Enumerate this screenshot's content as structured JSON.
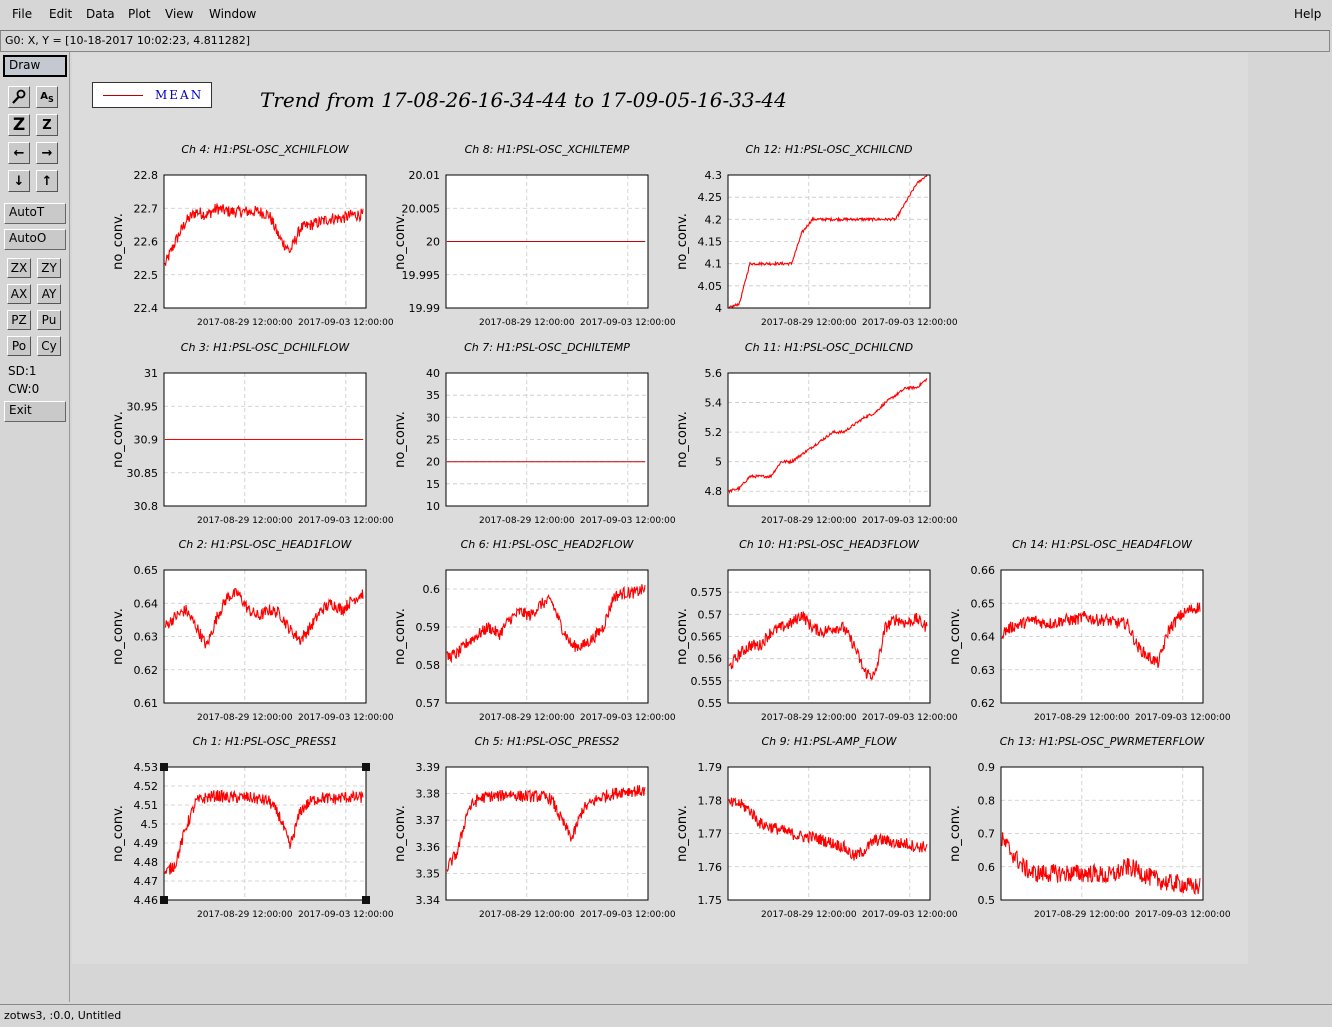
{
  "menu": {
    "items": [
      "File",
      "Edit",
      "Data",
      "Plot",
      "View",
      "Window"
    ],
    "help": "Help"
  },
  "coord_readout": "G0: X, Y = [10-18-2017 10:02:23, 4.811282]",
  "toolbar": {
    "draw": "Draw",
    "autot": "AutoT",
    "autoo": "AutoO",
    "small": [
      "ZX",
      "ZY",
      "AX",
      "AY",
      "PZ",
      "Pu",
      "Po",
      "Cy"
    ],
    "sd": "SD:1",
    "cw": "CW:0",
    "exit": "Exit"
  },
  "legend": {
    "label": "MEAN",
    "color": "#cc0000"
  },
  "main_title": "Trend from 17-08-26-16-34-44 to 17-09-05-16-33-44",
  "status": "zotws3, :0.0, Untitled",
  "chart_data": [
    {
      "type": "line",
      "title": "Ch 4: H1:PSL-OSC_XCHILFLOW",
      "ylabel": "no_conv.",
      "ylim": [
        22.4,
        22.8
      ],
      "yticks": [
        "22.8",
        "22.7",
        "22.6",
        "22.5",
        "22.4"
      ],
      "xticks": [
        "2017-08-29 12:00:00",
        "2017-09-03 12:00:00"
      ],
      "series": [
        {
          "color": "#ff0000",
          "values": [
            22.53,
            22.6,
            22.66,
            22.69,
            22.68,
            22.7,
            22.69,
            22.69,
            22.69,
            22.69,
            22.68,
            22.61,
            22.57,
            22.64,
            22.65,
            22.66,
            22.67,
            22.67,
            22.68,
            22.68
          ]
        }
      ]
    },
    {
      "type": "line",
      "title": "Ch 8: H1:PSL-OSC_XCHILTEMP",
      "ylabel": "no_conv.",
      "ylim": [
        19.99,
        20.01
      ],
      "yticks": [
        "20.01",
        "20.005",
        "20",
        "19.995",
        "19.99"
      ],
      "xticks": [
        "2017-08-29 12:00:00",
        "2017-09-03 12:00:00"
      ],
      "series": [
        {
          "color": "#cc0000",
          "values": [
            20,
            20,
            20,
            20,
            20,
            20,
            20,
            20,
            20,
            20,
            20,
            20,
            20,
            20,
            20,
            20,
            20,
            20,
            20,
            20
          ]
        }
      ]
    },
    {
      "type": "line",
      "title": "Ch 12: H1:PSL-OSC_XCHILCND",
      "ylabel": "no_conv.",
      "ylim": [
        4,
        4.3
      ],
      "yticks": [
        "4.3",
        "4.25",
        "4.2",
        "4.15",
        "4.1",
        "4.05",
        "4"
      ],
      "xticks": [
        "2017-08-29 12:00:00",
        "2017-09-03 12:00:00"
      ],
      "series": [
        {
          "color": "#ff0000",
          "values": [
            4,
            4.01,
            4.1,
            4.1,
            4.1,
            4.1,
            4.1,
            4.17,
            4.2,
            4.2,
            4.2,
            4.2,
            4.2,
            4.2,
            4.2,
            4.2,
            4.2,
            4.24,
            4.28,
            4.3
          ]
        }
      ]
    },
    {
      "type": "line",
      "title": "Ch 3: H1:PSL-OSC_DCHILFLOW",
      "ylabel": "no_conv.",
      "ylim": [
        30.8,
        31
      ],
      "yticks": [
        "31",
        "30.95",
        "30.9",
        "30.85",
        "30.8"
      ],
      "xticks": [
        "2017-08-29 12:00:00",
        "2017-09-03 12:00:00"
      ],
      "series": [
        {
          "color": "#ff0000",
          "values": [
            30.9,
            30.9,
            30.9,
            30.9,
            30.9,
            30.9,
            30.9,
            30.9,
            30.9,
            30.9,
            30.9,
            30.9,
            30.9,
            30.9,
            30.9,
            30.9,
            30.9,
            30.9,
            30.9,
            30.9
          ]
        }
      ]
    },
    {
      "type": "line",
      "title": "Ch 7: H1:PSL-OSC_DCHILTEMP",
      "ylabel": "no_conv.",
      "ylim": [
        10,
        40
      ],
      "yticks": [
        "40",
        "35",
        "30",
        "25",
        "20",
        "15",
        "10"
      ],
      "xticks": [
        "2017-08-29 12:00:00",
        "2017-09-03 12:00:00"
      ],
      "series": [
        {
          "color": "#cc0000",
          "values": [
            20,
            20,
            20,
            20,
            20,
            20,
            20,
            20,
            20,
            20,
            20,
            20,
            20,
            20,
            20,
            20,
            20,
            20,
            20,
            20
          ]
        }
      ]
    },
    {
      "type": "line",
      "title": "Ch 11: H1:PSL-OSC_DCHILCND",
      "ylabel": "no_conv.",
      "ylim": [
        4.7,
        5.6
      ],
      "yticks": [
        "5.6",
        "5.4",
        "5.2",
        "5",
        "4.8"
      ],
      "xticks": [
        "2017-08-29 12:00:00",
        "2017-09-03 12:00:00"
      ],
      "series": [
        {
          "color": "#ff0000",
          "values": [
            4.8,
            4.82,
            4.9,
            4.9,
            4.9,
            5,
            5,
            5.05,
            5.1,
            5.15,
            5.2,
            5.2,
            5.25,
            5.3,
            5.33,
            5.4,
            5.45,
            5.5,
            5.5,
            5.56
          ]
        }
      ]
    },
    {
      "type": "line",
      "title": "Ch 2: H1:PSL-OSC_HEAD1FLOW",
      "ylabel": "no_conv.",
      "ylim": [
        0.61,
        0.65
      ],
      "yticks": [
        "0.65",
        "0.64",
        "0.63",
        "0.62",
        "0.61"
      ],
      "xticks": [
        "2017-08-29 12:00:00",
        "2017-09-03 12:00:00"
      ],
      "series": [
        {
          "color": "#ff0000",
          "values": [
            0.633,
            0.636,
            0.638,
            0.633,
            0.627,
            0.636,
            0.642,
            0.643,
            0.638,
            0.636,
            0.638,
            0.637,
            0.632,
            0.629,
            0.633,
            0.638,
            0.64,
            0.638,
            0.641,
            0.643
          ]
        }
      ]
    },
    {
      "type": "line",
      "title": "Ch 6: H1:PSL-OSC_HEAD2FLOW",
      "ylabel": "no_conv.",
      "ylim": [
        0.57,
        0.605
      ],
      "yticks": [
        "0.6",
        "0.59",
        "0.58",
        "0.57"
      ],
      "xticks": [
        "2017-08-29 12:00:00",
        "2017-09-03 12:00:00"
      ],
      "series": [
        {
          "color": "#ff0000",
          "values": [
            0.582,
            0.583,
            0.586,
            0.588,
            0.59,
            0.588,
            0.592,
            0.594,
            0.593,
            0.596,
            0.597,
            0.59,
            0.585,
            0.585,
            0.587,
            0.59,
            0.598,
            0.599,
            0.599,
            0.6
          ]
        }
      ]
    },
    {
      "type": "line",
      "title": "Ch 10: H1:PSL-OSC_HEAD3FLOW",
      "ylabel": "no_conv.",
      "ylim": [
        0.55,
        0.58
      ],
      "yticks": [
        "0.575",
        "0.57",
        "0.565",
        "0.56",
        "0.555",
        "0.55"
      ],
      "xticks": [
        "2017-08-29 12:00:00",
        "2017-09-03 12:00:00"
      ],
      "series": [
        {
          "color": "#ff0000",
          "values": [
            0.558,
            0.561,
            0.563,
            0.563,
            0.566,
            0.567,
            0.568,
            0.57,
            0.567,
            0.566,
            0.567,
            0.567,
            0.563,
            0.557,
            0.556,
            0.567,
            0.569,
            0.568,
            0.569,
            0.567
          ]
        }
      ]
    },
    {
      "type": "line",
      "title": "Ch 14: H1:PSL-OSC_HEAD4FLOW",
      "ylabel": "no_conv.",
      "ylim": [
        0.62,
        0.66
      ],
      "yticks": [
        "0.66",
        "0.65",
        "0.64",
        "0.63",
        "0.62"
      ],
      "xticks": [
        "2017-08-29 12:00:00",
        "2017-09-03 12:00:00"
      ],
      "series": [
        {
          "color": "#ff0000",
          "values": [
            0.641,
            0.643,
            0.644,
            0.645,
            0.644,
            0.644,
            0.645,
            0.645,
            0.646,
            0.645,
            0.645,
            0.644,
            0.644,
            0.637,
            0.634,
            0.632,
            0.642,
            0.646,
            0.648,
            0.649
          ]
        }
      ]
    },
    {
      "type": "line",
      "title": "Ch 1: H1:PSL-OSC_PRESS1",
      "ylabel": "no_conv.",
      "ylim": [
        4.46,
        4.53
      ],
      "yticks": [
        "4.53",
        "4.52",
        "4.51",
        "4.5",
        "4.49",
        "4.48",
        "4.47",
        "4.46"
      ],
      "xticks": [
        "2017-08-29 12:00:00",
        "2017-09-03 12:00:00"
      ],
      "series": [
        {
          "color": "#ff0000",
          "values": [
            4.474,
            4.479,
            4.498,
            4.512,
            4.514,
            4.515,
            4.514,
            4.514,
            4.514,
            4.513,
            4.512,
            4.504,
            4.488,
            4.507,
            4.512,
            4.514,
            4.513,
            4.514,
            4.514,
            4.514
          ]
        }
      ]
    },
    {
      "type": "line",
      "title": "Ch 5: H1:PSL-OSC_PRESS2",
      "ylabel": "no_conv.",
      "ylim": [
        3.34,
        3.39
      ],
      "yticks": [
        "3.39",
        "3.38",
        "3.37",
        "3.36",
        "3.35",
        "3.34"
      ],
      "xticks": [
        "2017-08-29 12:00:00",
        "2017-09-03 12:00:00"
      ],
      "series": [
        {
          "color": "#ff0000",
          "values": [
            3.352,
            3.358,
            3.374,
            3.378,
            3.379,
            3.379,
            3.38,
            3.379,
            3.379,
            3.379,
            3.378,
            3.37,
            3.363,
            3.374,
            3.377,
            3.379,
            3.38,
            3.381,
            3.381,
            3.381
          ]
        }
      ]
    },
    {
      "type": "line",
      "title": "Ch 9: H1:PSL-AMP_FLOW",
      "ylabel": "no_conv.",
      "ylim": [
        1.75,
        1.79
      ],
      "yticks": [
        "1.79",
        "1.78",
        "1.77",
        "1.76",
        "1.75"
      ],
      "xticks": [
        "2017-08-29 12:00:00",
        "2017-09-03 12:00:00"
      ],
      "series": [
        {
          "color": "#ff0000",
          "values": [
            1.779,
            1.779,
            1.777,
            1.773,
            1.772,
            1.771,
            1.77,
            1.769,
            1.769,
            1.768,
            1.767,
            1.766,
            1.763,
            1.765,
            1.768,
            1.768,
            1.767,
            1.767,
            1.766,
            1.766
          ]
        }
      ]
    },
    {
      "type": "line",
      "title": "Ch 13: H1:PSL-OSC_PWRMETERFLOW",
      "ylabel": "no_conv.",
      "ylim": [
        0.5,
        0.9
      ],
      "yticks": [
        "0.9",
        "0.8",
        "0.7",
        "0.6",
        "0.5"
      ],
      "xticks": [
        "2017-08-29 12:00:00",
        "2017-09-03 12:00:00"
      ],
      "series": [
        {
          "color": "#ff0000",
          "values": [
            0.68,
            0.64,
            0.6,
            0.58,
            0.58,
            0.58,
            0.58,
            0.58,
            0.58,
            0.58,
            0.57,
            0.58,
            0.6,
            0.59,
            0.57,
            0.56,
            0.55,
            0.55,
            0.54,
            0.54
          ]
        }
      ]
    }
  ]
}
